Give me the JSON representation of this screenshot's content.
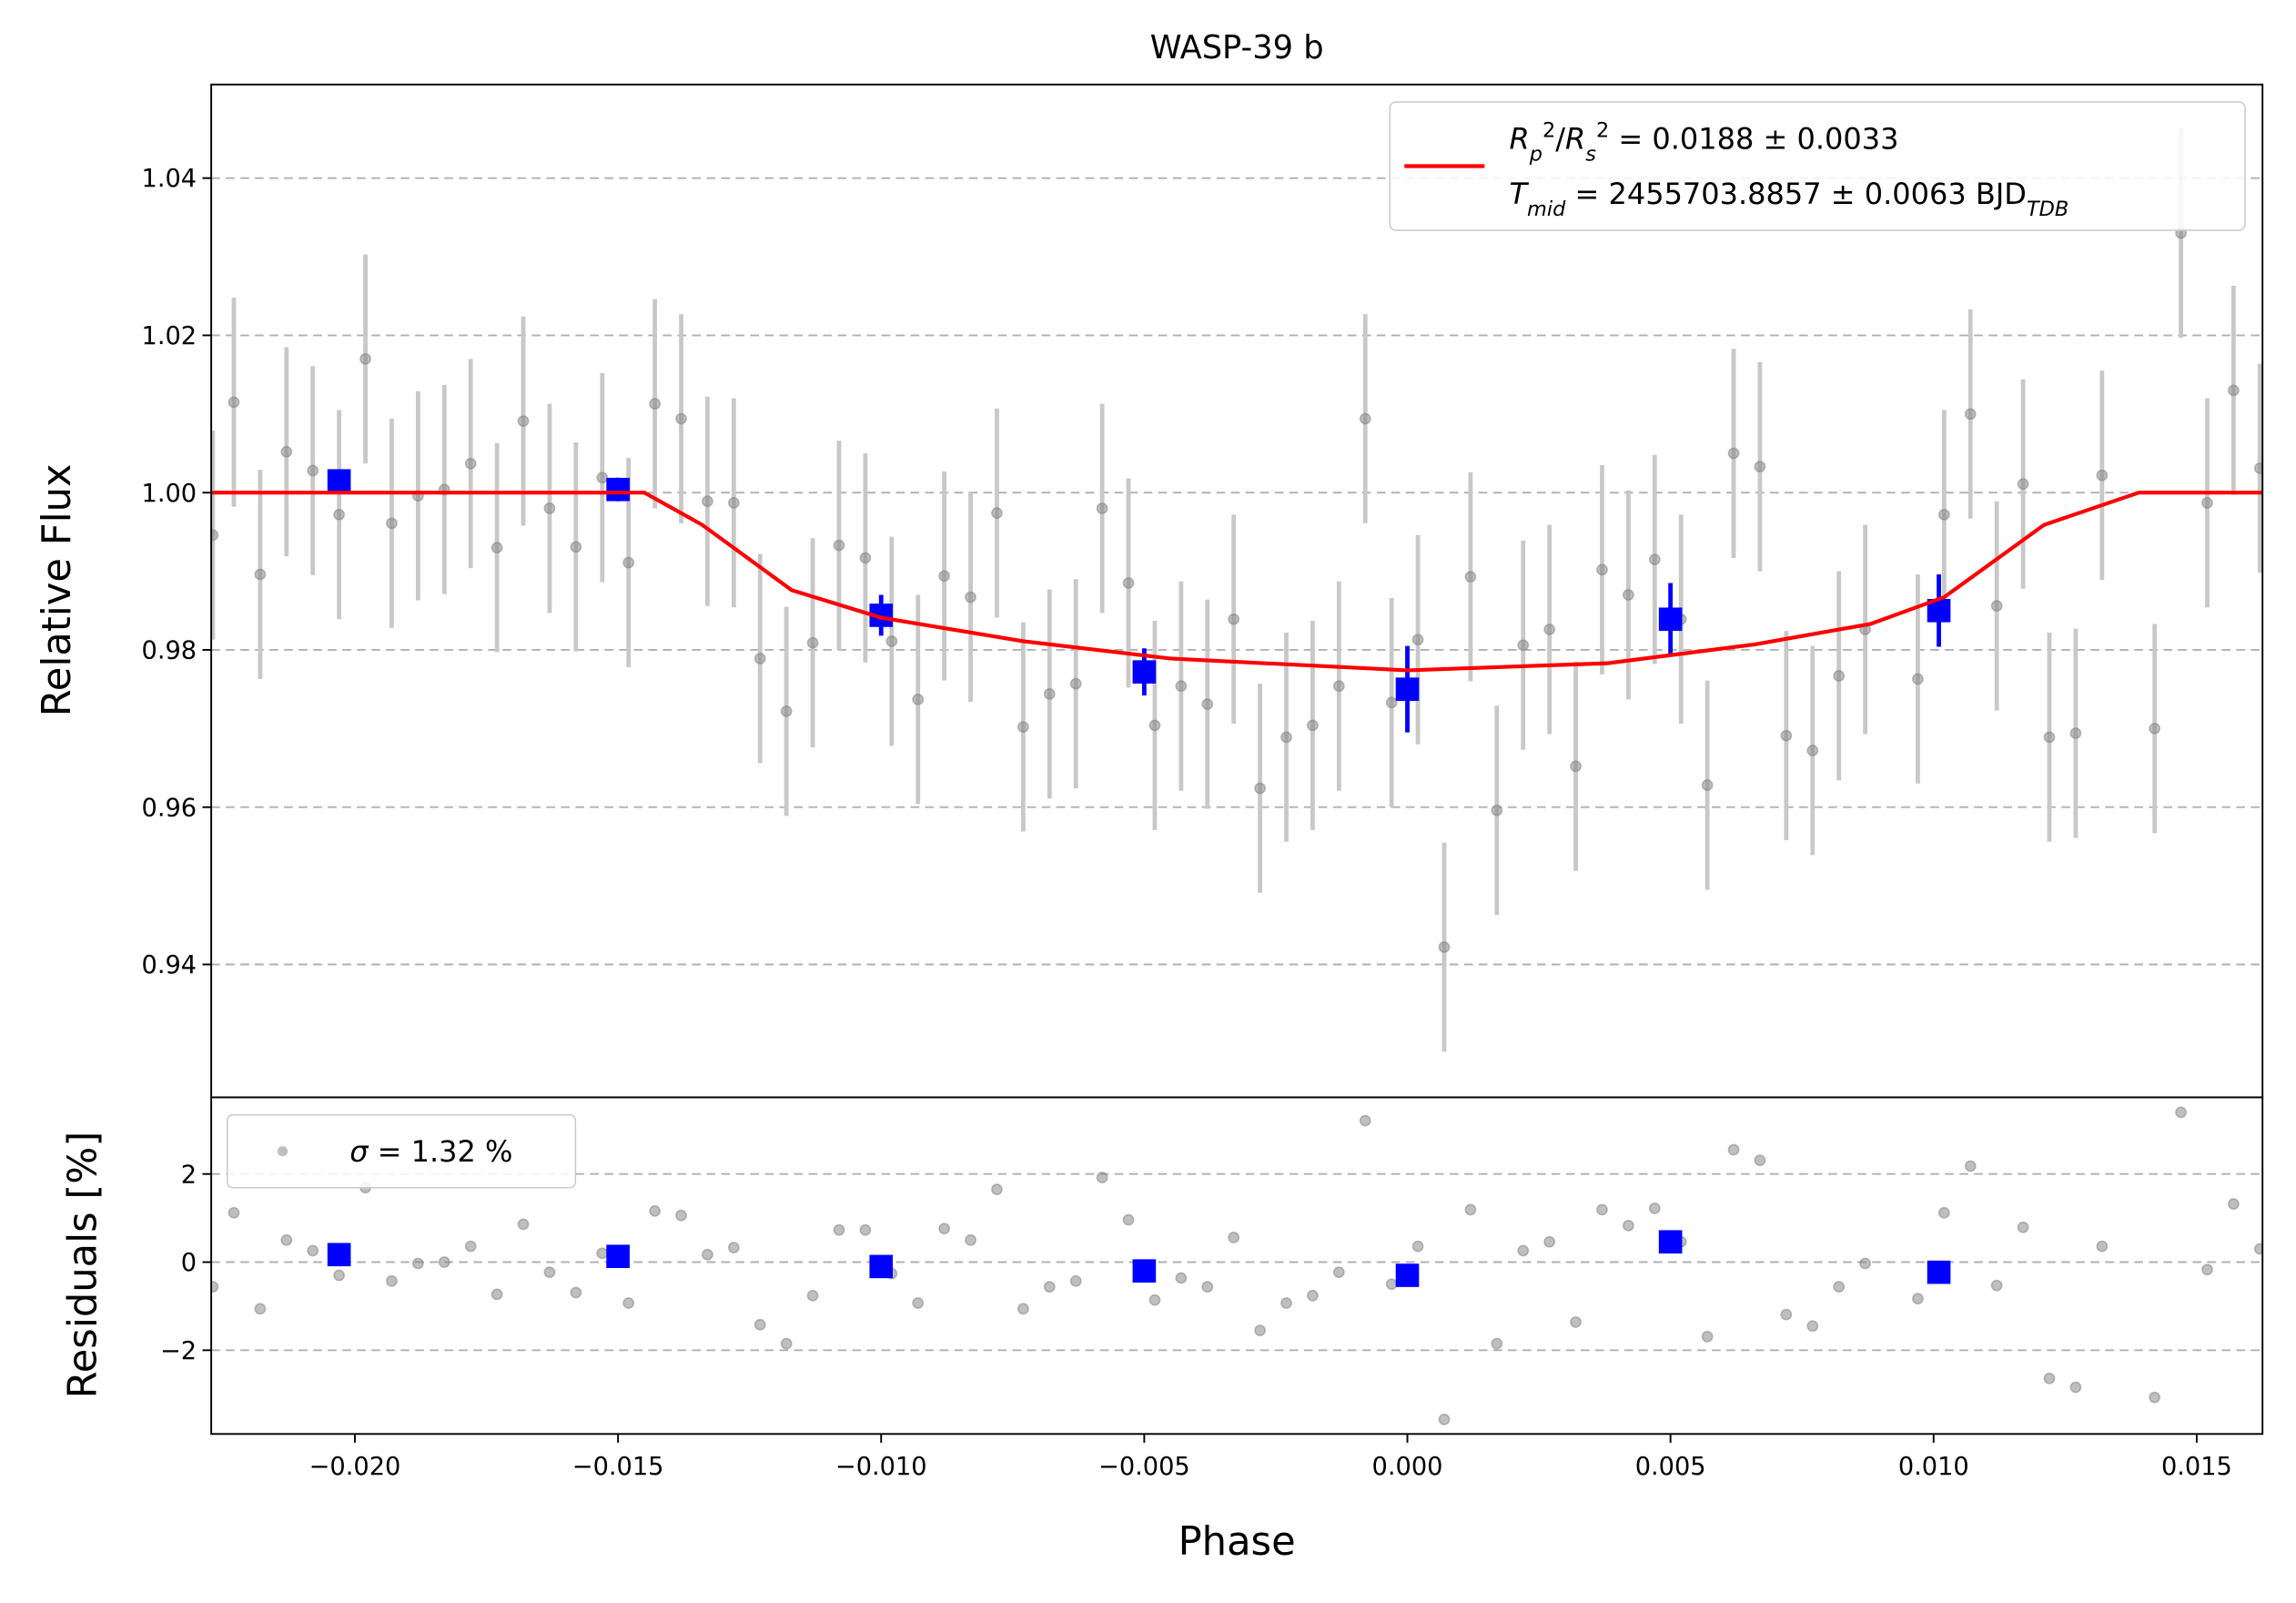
{
  "chart_data": [
    {
      "type": "scatter",
      "title": "WASP-39 b",
      "ylabel": "Relative Flux",
      "xlim": [
        -0.02273,
        0.01625
      ],
      "ylim": [
        0.9231,
        1.0519
      ],
      "yticks": [
        0.94,
        0.96,
        0.98,
        {
          "value": 1.0,
          "label": "1.00"
        },
        1.02,
        1.04
      ],
      "grid": "y",
      "legend": "upper right",
      "series": [
        {
          "kind": "points",
          "color": "#808080",
          "error_color": "#c8c8c8",
          "error": 0.0133,
          "x": [
            -0.0227,
            -0.0223,
            -0.0218,
            -0.0213,
            -0.0208,
            -0.0203,
            -0.0198,
            -0.0193,
            -0.0188,
            -0.0183,
            -0.0178,
            -0.0173,
            -0.0168,
            -0.0163,
            -0.0158,
            -0.0153,
            -0.0148,
            -0.0143,
            -0.0138,
            -0.0133,
            -0.0128,
            -0.0123,
            -0.0118,
            -0.0113,
            -0.0108,
            -0.0103,
            -0.0098,
            -0.0093,
            -0.0088,
            -0.0083,
            -0.0078,
            -0.0073,
            -0.0068,
            -0.0063,
            -0.0058,
            -0.0053,
            -0.0048,
            -0.0043,
            -0.0038,
            -0.0033,
            -0.0028,
            -0.0023,
            -0.0018,
            -0.0013,
            -0.0008,
            -0.0003,
            0.0002,
            0.0007,
            0.0012,
            0.0017,
            0.0022,
            0.0027,
            0.0032,
            0.0037,
            0.0042,
            0.0047,
            0.0052,
            0.0057,
            0.0062,
            0.0067,
            0.0072,
            0.0077,
            0.0082,
            0.0087,
            0.0097,
            0.0102,
            0.0107,
            0.0112,
            0.0117,
            0.0122,
            0.0127,
            0.0132,
            0.0142,
            0.0147,
            0.0152,
            0.0157,
            0.0162
          ],
          "values": [
            0.9946,
            1.0115,
            0.9896,
            1.0052,
            1.0028,
            0.9972,
            1.017,
            0.9961,
            0.9996,
            1.0004,
            1.0037,
            0.993,
            1.0091,
            0.998,
            0.9931,
            1.0019,
            0.9911,
            1.0113,
            1.0094,
            0.9989,
            0.9987,
            0.9789,
            0.9722,
            0.9809,
            0.9933,
            0.9917,
            0.9811,
            0.9737,
            0.9894,
            0.9867,
            0.9974,
            0.9702,
            0.9744,
            0.9757,
            0.998,
            0.9885,
            0.9704,
            0.9754,
            0.9731,
            0.9839,
            0.9624,
            0.9689,
            0.9704,
            0.9754,
            1.0094,
            0.9733,
            0.9813,
            0.9422,
            0.9893,
            0.9596,
            0.9806,
            0.9826,
            0.9652,
            0.9902,
            0.987,
            0.9915,
            0.9839,
            0.9628,
            1.005,
            1.0033,
            0.9691,
            0.9672,
            0.9767,
            0.9826,
            0.9763,
            0.9972,
            1.01,
            0.9856,
            1.0011,
            0.9689,
            0.9694,
            1.0022,
            0.97,
            1.033,
            0.9987,
            1.013,
            1.0031
          ]
        },
        {
          "kind": "binned",
          "color": "#0000ff",
          "x": [
            -0.0203,
            -0.015,
            -0.01,
            -0.005,
            0.0,
            0.005,
            0.0101
          ],
          "values": [
            1.0015,
            1.0004,
            0.9844,
            0.9772,
            0.975,
            0.9839,
            0.985
          ],
          "errors": [
            0.0011,
            0.0015,
            0.0026,
            0.003,
            0.0055,
            0.0046,
            0.0046
          ]
        },
        {
          "kind": "line",
          "color": "#ff0000",
          "name_parts": [
            [
              {
                "text": "R",
                "italic": true
              },
              {
                "text": "p",
                "italic": true,
                "shift": "sub"
              },
              {
                "text": "2",
                "shift": "super"
              },
              {
                "text": "/"
              },
              {
                "text": "R",
                "italic": true
              },
              {
                "text": "s",
                "italic": true,
                "shift": "sub"
              },
              {
                "text": "2",
                "shift": "super"
              },
              {
                "text": " = 0.0188 ± 0.0033"
              }
            ],
            [
              {
                "text": "T",
                "italic": true
              },
              {
                "text": "mid",
                "italic": true,
                "shift": "sub"
              },
              {
                "text": " = 2455703.8857 ± 0.0063 BJD"
              },
              {
                "text": "TDB",
                "italic": true,
                "shift": "sub"
              }
            ]
          ],
          "x": [
            -0.02273,
            -0.0145,
            -0.0134,
            -0.0117,
            -0.01,
            -0.0073,
            -0.0045,
            0.0,
            0.0038,
            0.0066,
            0.0088,
            0.0102,
            0.0121,
            0.0139,
            0.01625
          ],
          "values": [
            1.0,
            1.0,
            0.9959,
            0.9876,
            0.9841,
            0.9811,
            0.9789,
            0.9774,
            0.9783,
            0.9807,
            0.9833,
            0.9867,
            0.9959,
            1.0,
            1.0
          ]
        }
      ]
    },
    {
      "type": "scatter",
      "ylabel": "Residuals [%]",
      "xlabel": "Phase",
      "xlim": [
        -0.02273,
        0.01625
      ],
      "ylim": [
        -3.9,
        3.74
      ],
      "xticks": [
        {
          "value": -0.02,
          "label": "−0.020"
        },
        {
          "value": -0.015,
          "label": "−0.015"
        },
        {
          "value": -0.01,
          "label": "−0.010"
        },
        {
          "value": -0.005,
          "label": "−0.005"
        },
        {
          "value": 0,
          "label": "0.000"
        },
        {
          "value": 0.005,
          "label": "0.005"
        },
        {
          "value": 0.01,
          "label": "0.010"
        },
        {
          "value": 0.015,
          "label": "0.015"
        }
      ],
      "yticks": [
        {
          "value": -2,
          "label": "−2"
        },
        0,
        2
      ],
      "grid": "y",
      "legend": "upper left",
      "series": [
        {
          "kind": "points",
          "color": "#808080",
          "name_parts": [
            [
              {
                "text": "σ",
                "italic": true
              },
              {
                "text": " = 1.32 %"
              }
            ]
          ],
          "x": [
            -0.0227,
            -0.0223,
            -0.0218,
            -0.0213,
            -0.0208,
            -0.0203,
            -0.0198,
            -0.0193,
            -0.0188,
            -0.0183,
            -0.0178,
            -0.0173,
            -0.0168,
            -0.0163,
            -0.0158,
            -0.0153,
            -0.0148,
            -0.0143,
            -0.0138,
            -0.0133,
            -0.0128,
            -0.0123,
            -0.0118,
            -0.0113,
            -0.0108,
            -0.0103,
            -0.0098,
            -0.0093,
            -0.0088,
            -0.0083,
            -0.0078,
            -0.0073,
            -0.0068,
            -0.0063,
            -0.0058,
            -0.0053,
            -0.0048,
            -0.0043,
            -0.0038,
            -0.0033,
            -0.0028,
            -0.0023,
            -0.0018,
            -0.0013,
            -0.0008,
            -0.0003,
            0.0002,
            0.0007,
            0.0012,
            0.0017,
            0.0022,
            0.0027,
            0.0032,
            0.0037,
            0.0042,
            0.0047,
            0.0052,
            0.0057,
            0.0062,
            0.0067,
            0.0072,
            0.0077,
            0.0082,
            0.0087,
            0.0097,
            0.0102,
            0.0107,
            0.0112,
            0.0117,
            0.0122,
            0.0127,
            0.0132,
            0.0142,
            0.0147,
            0.0152,
            0.0157,
            0.0162
          ],
          "values": [
            -0.56,
            1.12,
            -1.06,
            0.5,
            0.26,
            -0.3,
            1.69,
            -0.43,
            -0.03,
            0.0,
            0.36,
            -0.73,
            0.86,
            -0.23,
            -0.69,
            0.2,
            -0.93,
            1.16,
            1.06,
            0.17,
            0.33,
            -1.42,
            -1.85,
            -0.76,
            0.73,
            0.73,
            -0.26,
            -0.93,
            0.76,
            0.5,
            1.65,
            -1.06,
            -0.56,
            -0.43,
            1.92,
            0.96,
            -0.86,
            -0.36,
            -0.56,
            0.56,
            -1.55,
            -0.93,
            -0.76,
            -0.23,
            3.21,
            -0.5,
            0.36,
            -3.57,
            1.19,
            -1.85,
            0.26,
            0.46,
            -1.36,
            1.19,
            0.83,
            1.22,
            0.46,
            -1.69,
            2.55,
            2.31,
            -1.19,
            -1.45,
            -0.56,
            -0.03,
            -0.83,
            1.12,
            2.18,
            -0.53,
            0.79,
            -2.64,
            -2.84,
            0.36,
            -3.07,
            3.4,
            -0.17,
            1.32,
            0.3
          ]
        },
        {
          "kind": "binned",
          "color": "#0000ff",
          "x": [
            -0.0203,
            -0.015,
            -0.01,
            -0.005,
            0.0,
            0.005,
            0.0101
          ],
          "values": [
            0.17,
            0.13,
            -0.1,
            -0.2,
            -0.3,
            0.46,
            -0.23
          ]
        }
      ]
    }
  ]
}
